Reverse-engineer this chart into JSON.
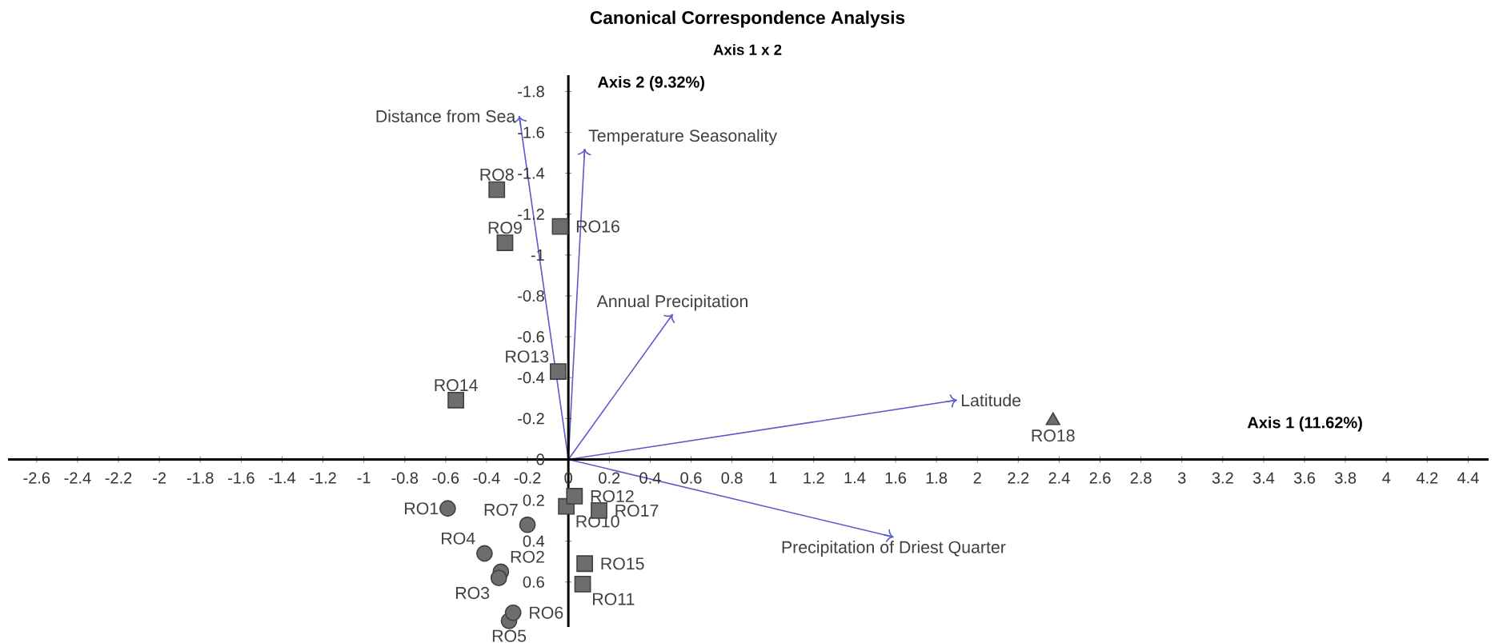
{
  "chart_data": {
    "type": "scatter",
    "title": "Canonical Correspondence Analysis",
    "subtitle": "Axis 1 x 2",
    "xlabel": "Axis 1 (11.62%)",
    "ylabel": "Axis 2 (9.32%)",
    "xlim": [
      -2.74,
      4.5
    ],
    "ylim": [
      0.82,
      -1.88
    ],
    "xticks": [
      -2.6,
      -2.4,
      -2.2,
      -2,
      -1.8,
      -1.6,
      -1.4,
      -1.2,
      -1,
      -0.8,
      -0.6,
      -0.4,
      -0.2,
      0,
      0.2,
      0.4,
      0.6,
      0.8,
      1,
      1.2,
      1.4,
      1.6,
      1.8,
      2,
      2.2,
      2.4,
      2.6,
      2.8,
      3,
      3.2,
      3.4,
      3.6,
      3.8,
      4,
      4.2,
      4.4
    ],
    "yticks": [
      -1.8,
      -1.6,
      -1.4,
      -1.2,
      -1,
      -0.8,
      -0.6,
      -0.4,
      -0.2,
      0,
      0.2,
      0.4,
      0.6
    ],
    "grid": false,
    "series": [
      {
        "marker": "circle",
        "color": "#6d6d6d",
        "x": [
          -0.59,
          -0.33,
          -0.34,
          -0.41,
          -0.29,
          -0.27,
          -0.2
        ],
        "values": [
          0.24,
          0.55,
          0.58,
          0.46,
          0.79,
          0.75,
          0.32
        ]
      },
      {
        "marker": "square",
        "color": "#6d6d6d",
        "x": [
          -0.35,
          -0.31,
          -0.01,
          0.07,
          0.03,
          -0.05,
          -0.55,
          0.08,
          -0.04,
          0.15
        ],
        "values": [
          -1.32,
          -1.06,
          0.23,
          0.61,
          0.18,
          -0.43,
          -0.29,
          0.51,
          -1.14,
          0.25
        ]
      },
      {
        "marker": "triangle",
        "color": "#6d6d6d",
        "x": [
          2.37
        ],
        "values": [
          -0.19
        ]
      },
      {
        "type": "line",
        "name": "Distance from Sea",
        "color": "#5a5ac8",
        "x": [
          0,
          -0.24
        ],
        "values": [
          0,
          -1.68
        ]
      },
      {
        "type": "line",
        "name": "Temperature Seasonality",
        "color": "#5a5ac8",
        "x": [
          0,
          0.08
        ],
        "values": [
          0,
          -1.52
        ]
      },
      {
        "type": "line",
        "name": "Annual Precipitation",
        "color": "#5a5ac8",
        "x": [
          0,
          0.51
        ],
        "values": [
          0,
          -0.71
        ]
      },
      {
        "type": "line",
        "name": "Latitude",
        "color": "#5a5ac8",
        "x": [
          0,
          1.9
        ],
        "values": [
          0,
          -0.29
        ]
      },
      {
        "type": "line",
        "name": "Precipitation of Driest Quarter",
        "color": "#5a5ac8",
        "x": [
          0,
          1.59
        ],
        "values": [
          0,
          0.38
        ]
      }
    ],
    "annotations": [
      {
        "text": "RO1",
        "x": -0.59,
        "y": 0.24
      },
      {
        "text": "RO2",
        "x": -0.33,
        "y": 0.55
      },
      {
        "text": "RO3",
        "x": -0.34,
        "y": 0.58
      },
      {
        "text": "RO4",
        "x": -0.41,
        "y": 0.46
      },
      {
        "text": "RO5",
        "x": -0.29,
        "y": 0.79
      },
      {
        "text": "RO6",
        "x": -0.27,
        "y": 0.75
      },
      {
        "text": "RO7",
        "x": -0.2,
        "y": 0.32
      },
      {
        "text": "RO8",
        "x": -0.35,
        "y": -1.32
      },
      {
        "text": "RO9",
        "x": -0.31,
        "y": -1.06
      },
      {
        "text": "RO10",
        "x": -0.01,
        "y": 0.23
      },
      {
        "text": "RO11",
        "x": 0.07,
        "y": 0.61
      },
      {
        "text": "RO12",
        "x": 0.03,
        "y": 0.18
      },
      {
        "text": "RO13",
        "x": -0.05,
        "y": -0.43
      },
      {
        "text": "RO14",
        "x": -0.55,
        "y": -0.29
      },
      {
        "text": "RO15",
        "x": 0.08,
        "y": 0.51
      },
      {
        "text": "RO16",
        "x": -0.04,
        "y": -1.14
      },
      {
        "text": "RO17",
        "x": 0.15,
        "y": 0.25
      },
      {
        "text": "RO18",
        "x": 2.37,
        "y": -0.19
      }
    ]
  }
}
